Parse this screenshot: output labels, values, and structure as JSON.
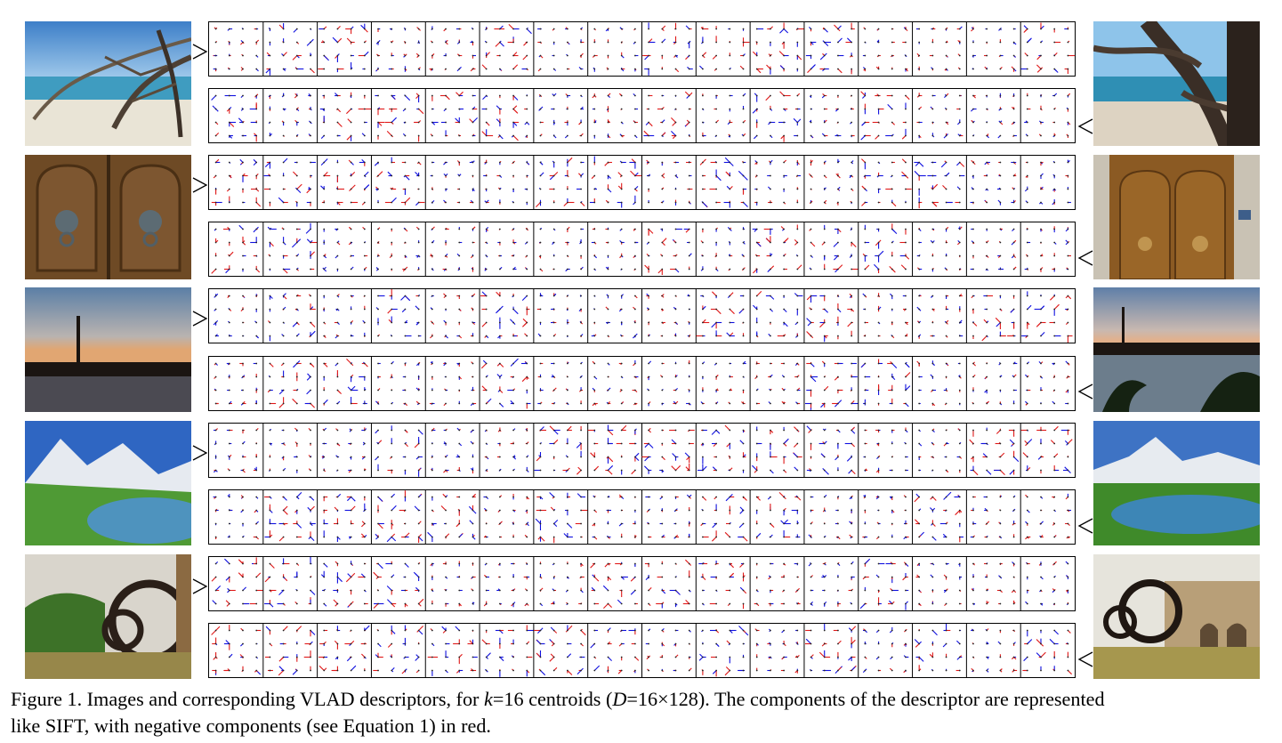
{
  "figure": {
    "caption": {
      "label": "Figure 1.",
      "text_a": " Images and corresponding VLAD descriptors, for ",
      "k_var": "k",
      "text_b": "=16 centroids (",
      "d_var": "D",
      "text_c": "=16×128). The components of the descriptor are represented",
      "line2": "like SIFT, with negative components (see Equation 1) in red."
    },
    "descriptor": {
      "centroids": 16,
      "grid": "4×4",
      "positive_color": "#1010e0",
      "negative_color": "#e01818"
    },
    "pairs": [
      {
        "left_image": "beach-with-driftwood-branches",
        "right_image": "beach-with-driftwood-closeup"
      },
      {
        "left_image": "wooden-double-door-lion-knockers",
        "right_image": "wooden-door-lion-knocker-facade"
      },
      {
        "left_image": "sunset-skyline-tower-over-water",
        "right_image": "sunset-tower-river-palms"
      },
      {
        "left_image": "alpine-lake-snow-peaks",
        "right_image": "alpine-peak-lake-panorama"
      },
      {
        "left_image": "water-wheel-noria-trees",
        "right_image": "water-wheel-noria-aqueduct"
      }
    ]
  }
}
